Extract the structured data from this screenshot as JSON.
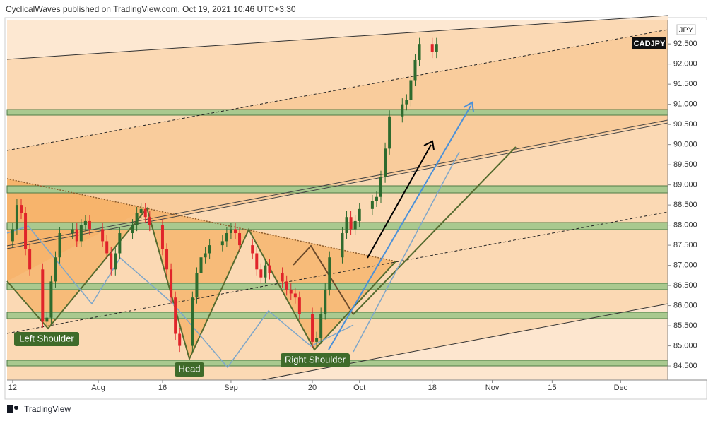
{
  "header": "CyclicalWaves published on TradingView.com, Oct 19, 2021 10:46 UTC+3:30",
  "footer": "TradingView",
  "chart_data": {
    "type": "candlestick",
    "symbol": "CADJPY",
    "currency": "JPY",
    "annotations": [
      "Left Shoulder",
      "Head",
      "Right Shoulder"
    ],
    "up_color": "#2e6b2e",
    "down_color": "#e0242a",
    "xlim": [
      10.7,
      165
    ],
    "xticks": [
      12,
      {
        "value": 32,
        "label": "Aug"
      },
      {
        "value": 47,
        "label": "16"
      },
      {
        "value": 63,
        "label": "Sep"
      },
      {
        "value": 82,
        "label": "20"
      },
      {
        "value": 93,
        "label": "Oct"
      },
      {
        "value": 110,
        "label": "18"
      },
      {
        "value": 124,
        "label": "Nov"
      },
      {
        "value": 138,
        "label": "15"
      },
      {
        "value": 154,
        "label": "Dec"
      }
    ],
    "ylim": [
      84.15,
      93.1
    ],
    "yticks": [
      {
        "value": 84.5,
        "label": "84.500"
      },
      {
        "value": 85,
        "label": "85.000"
      },
      {
        "value": 85.5,
        "label": "85.500"
      },
      {
        "value": 86,
        "label": "86.000"
      },
      {
        "value": 86.5,
        "label": "86.500"
      },
      {
        "value": 87,
        "label": "87.000"
      },
      {
        "value": 87.5,
        "label": "87.500"
      },
      {
        "value": 88,
        "label": "88.000"
      },
      {
        "value": 88.5,
        "label": "88.500"
      },
      {
        "value": 89,
        "label": "89.000"
      },
      {
        "value": 89.5,
        "label": "89.500"
      },
      {
        "value": 90,
        "label": "90.000"
      },
      {
        "value": 90.5,
        "label": "90.500"
      },
      {
        "value": 91,
        "label": "91.000"
      },
      {
        "value": 91.5,
        "label": "91.500"
      },
      {
        "value": 92,
        "label": "92.000"
      },
      {
        "value": 92.5,
        "label": "92.500"
      }
    ],
    "x": [
      12,
      13,
      14,
      15,
      16,
      19,
      20,
      21,
      22,
      23,
      26,
      27,
      28,
      29,
      30,
      33,
      34,
      35,
      36,
      37,
      40,
      41,
      42,
      43,
      44,
      47,
      48,
      49,
      50,
      51,
      54,
      55,
      56,
      57,
      58,
      61,
      62,
      63,
      64,
      65,
      68,
      69,
      70,
      71,
      72,
      75,
      76,
      77,
      78,
      79,
      82,
      83,
      84,
      85,
      86,
      89,
      90,
      91,
      92,
      93,
      96,
      97,
      98,
      99,
      100,
      103,
      104,
      105,
      106,
      107,
      110,
      111
    ],
    "ohlc": [
      [
        87.6,
        88.05,
        87.45,
        87.9
      ],
      [
        87.9,
        88.65,
        87.75,
        88.5
      ],
      [
        88.5,
        88.65,
        88.15,
        88.3
      ],
      [
        88.3,
        88.45,
        87.25,
        87.4
      ],
      [
        87.4,
        87.55,
        86.75,
        86.9
      ],
      [
        86.9,
        87.05,
        85.45,
        85.6
      ],
      [
        85.6,
        85.85,
        85.45,
        85.7
      ],
      [
        85.7,
        86.75,
        85.55,
        86.6
      ],
      [
        86.6,
        87.35,
        86.45,
        87.2
      ],
      [
        87.2,
        87.95,
        87.05,
        87.8
      ],
      [
        87.8,
        88.05,
        87.65,
        87.9
      ],
      [
        87.9,
        88.05,
        87.45,
        87.6
      ],
      [
        87.6,
        88.15,
        87.45,
        88.0
      ],
      [
        88.0,
        88.25,
        87.85,
        88.1
      ],
      [
        88.1,
        88.25,
        87.75,
        87.9
      ],
      [
        87.9,
        88.05,
        87.45,
        87.6
      ],
      [
        87.6,
        87.75,
        87.15,
        87.3
      ],
      [
        87.3,
        87.45,
        86.75,
        86.9
      ],
      [
        86.9,
        87.45,
        86.75,
        87.3
      ],
      [
        87.3,
        87.95,
        87.15,
        87.8
      ],
      [
        87.8,
        88.15,
        87.65,
        88.0
      ],
      [
        88.0,
        88.45,
        87.85,
        88.3
      ],
      [
        88.3,
        88.55,
        88.15,
        88.4
      ],
      [
        88.4,
        88.55,
        88.05,
        88.2
      ],
      [
        88.2,
        88.35,
        87.85,
        88.0
      ],
      [
        88.0,
        88.15,
        87.25,
        87.4
      ],
      [
        87.4,
        87.55,
        86.75,
        86.9
      ],
      [
        86.9,
        87.05,
        86.05,
        86.2
      ],
      [
        86.2,
        86.35,
        85.15,
        85.3
      ],
      [
        85.3,
        85.45,
        84.85,
        85.0
      ],
      [
        85.0,
        86.35,
        84.85,
        86.2
      ],
      [
        86.2,
        86.95,
        86.05,
        86.8
      ],
      [
        86.8,
        87.35,
        86.65,
        87.2
      ],
      [
        87.2,
        87.45,
        87.05,
        87.3
      ],
      [
        87.3,
        87.65,
        87.15,
        87.5
      ],
      [
        87.5,
        87.75,
        87.35,
        87.6
      ],
      [
        87.6,
        87.95,
        87.45,
        87.8
      ],
      [
        87.8,
        88.05,
        87.65,
        87.9
      ],
      [
        87.9,
        88.05,
        87.65,
        87.8
      ],
      [
        87.8,
        87.95,
        87.35,
        87.5
      ],
      [
        87.5,
        87.65,
        87.15,
        87.3
      ],
      [
        87.3,
        87.45,
        86.75,
        86.9
      ],
      [
        86.9,
        87.05,
        86.55,
        86.7
      ],
      [
        86.7,
        87.15,
        86.55,
        87.0
      ],
      [
        87.0,
        87.15,
        86.65,
        86.8
      ],
      [
        86.8,
        86.95,
        86.45,
        86.6
      ],
      [
        86.6,
        86.75,
        86.25,
        86.4
      ],
      [
        86.4,
        86.55,
        86.15,
        86.3
      ],
      [
        86.3,
        86.45,
        86.05,
        86.2
      ],
      [
        86.2,
        86.35,
        85.65,
        85.8
      ],
      [
        85.8,
        85.95,
        84.95,
        85.1
      ],
      [
        85.1,
        85.35,
        84.95,
        85.2
      ],
      [
        85.2,
        85.95,
        85.05,
        85.8
      ],
      [
        85.8,
        86.55,
        85.65,
        86.4
      ],
      [
        86.4,
        87.35,
        86.25,
        87.2
      ],
      [
        87.2,
        87.95,
        87.05,
        87.8
      ],
      [
        87.8,
        88.35,
        87.65,
        88.2
      ],
      [
        88.2,
        88.35,
        87.75,
        87.9
      ],
      [
        87.9,
        88.25,
        87.75,
        88.1
      ],
      [
        88.1,
        88.55,
        87.95,
        88.4
      ],
      [
        88.4,
        88.75,
        88.25,
        88.6
      ],
      [
        88.6,
        88.85,
        88.45,
        88.7
      ],
      [
        88.7,
        89.35,
        88.55,
        89.2
      ],
      [
        89.2,
        90.05,
        89.05,
        89.9
      ],
      [
        89.9,
        90.85,
        89.75,
        90.7
      ],
      [
        90.7,
        91.15,
        90.55,
        91.0
      ],
      [
        91.0,
        91.25,
        90.85,
        91.1
      ],
      [
        91.1,
        91.75,
        90.95,
        91.6
      ],
      [
        91.6,
        92.25,
        91.45,
        92.1
      ],
      [
        92.1,
        92.65,
        91.95,
        92.5
      ],
      [
        92.5,
        92.65,
        92.15,
        92.3
      ],
      [
        92.3,
        92.65,
        92.15,
        92.5
      ]
    ]
  }
}
